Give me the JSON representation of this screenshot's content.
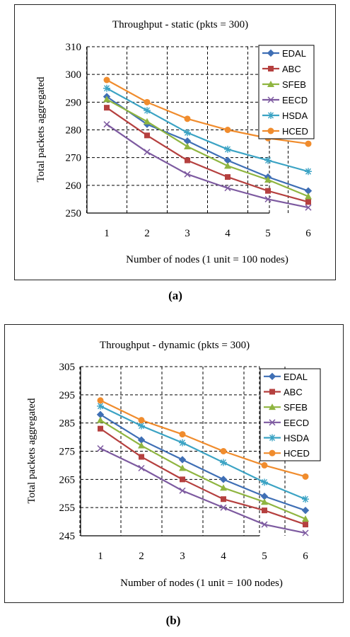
{
  "captions": [
    "(a)",
    "(b)"
  ],
  "chart_data": [
    {
      "type": "line",
      "title": "Throughput - static (pkts = 300)",
      "xlabel": "Number of nodes (1 unit = 100 nodes)",
      "ylabel": "Total packets aggregated",
      "x": [
        1,
        2,
        3,
        4,
        5,
        6
      ],
      "ylim": [
        250,
        310
      ],
      "yticks": [
        250,
        260,
        270,
        280,
        290,
        300,
        310
      ],
      "grid": "dashed",
      "legend_position": "top-right",
      "series": [
        {
          "name": "EDAL",
          "color": "#3f6fb5",
          "marker": "diamond",
          "values": [
            292,
            282,
            276,
            269,
            263,
            258
          ]
        },
        {
          "name": "ABC",
          "color": "#b5403f",
          "marker": "square",
          "values": [
            288,
            278,
            269,
            263,
            258,
            254
          ]
        },
        {
          "name": "SFEB",
          "color": "#8fb540",
          "marker": "triangle",
          "values": [
            291,
            283,
            274,
            267,
            262,
            256
          ]
        },
        {
          "name": "EECD",
          "color": "#7d5aa0",
          "marker": "x",
          "values": [
            282,
            272,
            264,
            259,
            255,
            252
          ]
        },
        {
          "name": "HSDA",
          "color": "#3ba3c4",
          "marker": "star",
          "values": [
            295,
            287,
            279,
            273,
            269,
            265
          ]
        },
        {
          "name": "HCED",
          "color": "#f08c2d",
          "marker": "circle",
          "values": [
            298,
            290,
            284,
            280,
            277,
            275
          ]
        }
      ]
    },
    {
      "type": "line",
      "title": "Throughput - dynamic (pkts = 300)",
      "xlabel": "Number of nodes (1 unit = 100 nodes)",
      "ylabel": "Total packets aggregated",
      "x": [
        1,
        2,
        3,
        4,
        5,
        6
      ],
      "ylim": [
        245,
        305
      ],
      "yticks": [
        245,
        255,
        265,
        275,
        285,
        295,
        305
      ],
      "grid": "dashed",
      "legend_position": "top-right",
      "series": [
        {
          "name": "EDAL",
          "color": "#3f6fb5",
          "marker": "diamond",
          "values": [
            288,
            279,
            272,
            265,
            259,
            254
          ]
        },
        {
          "name": "ABC",
          "color": "#b5403f",
          "marker": "square",
          "values": [
            283,
            273,
            265,
            258,
            254,
            249
          ]
        },
        {
          "name": "SFEB",
          "color": "#8fb540",
          "marker": "triangle",
          "values": [
            286,
            277,
            269,
            262,
            257,
            251
          ]
        },
        {
          "name": "EECD",
          "color": "#7d5aa0",
          "marker": "x",
          "values": [
            276,
            269,
            261,
            255,
            249,
            246
          ]
        },
        {
          "name": "HSDA",
          "color": "#3ba3c4",
          "marker": "star",
          "values": [
            291,
            284,
            278,
            271,
            264,
            258
          ]
        },
        {
          "name": "HCED",
          "color": "#f08c2d",
          "marker": "circle",
          "values": [
            293,
            286,
            281,
            275,
            270,
            266
          ]
        }
      ]
    }
  ]
}
